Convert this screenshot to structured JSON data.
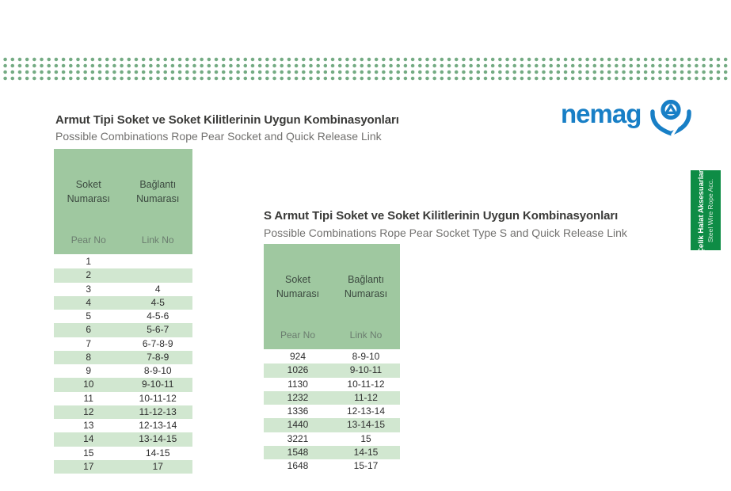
{
  "logo": {
    "text": "nemag",
    "icon": "nemag-grab-emblem",
    "color": "#187fc6"
  },
  "side_tab": {
    "line1": "Çelik Halat Aksesuarları",
    "line2": "Steel Wire Rope Acc.",
    "color": "#0e8c45"
  },
  "section_left": {
    "title": "Armut Tipi Soket ve Soket Kilitlerinin Uygun Kombinasyonları",
    "subtitle": "Possible Combinations Rope Pear Socket and Quick Release Link",
    "table": {
      "col1_label": "Soket\nNumarası",
      "col2_label": "Bağlantı\nNumarası",
      "col1_sublabel": "Pear No",
      "col2_sublabel": "Link No",
      "rows": [
        [
          "1",
          ""
        ],
        [
          "2",
          ""
        ],
        [
          "3",
          "4"
        ],
        [
          "4",
          "4-5"
        ],
        [
          "5",
          "4-5-6"
        ],
        [
          "6",
          "5-6-7"
        ],
        [
          "7",
          "6-7-8-9"
        ],
        [
          "8",
          "7-8-9"
        ],
        [
          "9",
          "8-9-10"
        ],
        [
          "10",
          "9-10-11"
        ],
        [
          "11",
          "10-11-12"
        ],
        [
          "12",
          "11-12-13"
        ],
        [
          "13",
          "12-13-14"
        ],
        [
          "14",
          "13-14-15"
        ],
        [
          "15",
          "14-15"
        ],
        [
          "17",
          "17"
        ]
      ]
    }
  },
  "section_right": {
    "title": "S Armut Tipi Soket ve Soket Kilitlerinin Uygun Kombinasyonları",
    "subtitle": "Possible Combinations Rope Pear Socket Type S and Quick Release Link",
    "table": {
      "col1_label": "Soket\nNumarası",
      "col2_label": "Bağlantı\nNumarası",
      "col1_sublabel": "Pear No",
      "col2_sublabel": "Link No",
      "rows": [
        [
          "924",
          "8-9-10"
        ],
        [
          "1026",
          "9-10-11"
        ],
        [
          "1130",
          "10-11-12"
        ],
        [
          "1232",
          "11-12"
        ],
        [
          "1336",
          "12-13-14"
        ],
        [
          "1440",
          "13-14-15"
        ],
        [
          "3221",
          "15"
        ],
        [
          "1548",
          "14-15"
        ],
        [
          "1648",
          "15-17"
        ]
      ]
    }
  },
  "colors": {
    "dot_green": "#74ab83",
    "table_header_green": "#9fc8a0",
    "row_alt_green": "#d1e7d0",
    "tab_green": "#0e8c45",
    "logo_blue": "#187fc6",
    "title_text": "#3a3a38",
    "subtitle_text": "#72716f"
  }
}
